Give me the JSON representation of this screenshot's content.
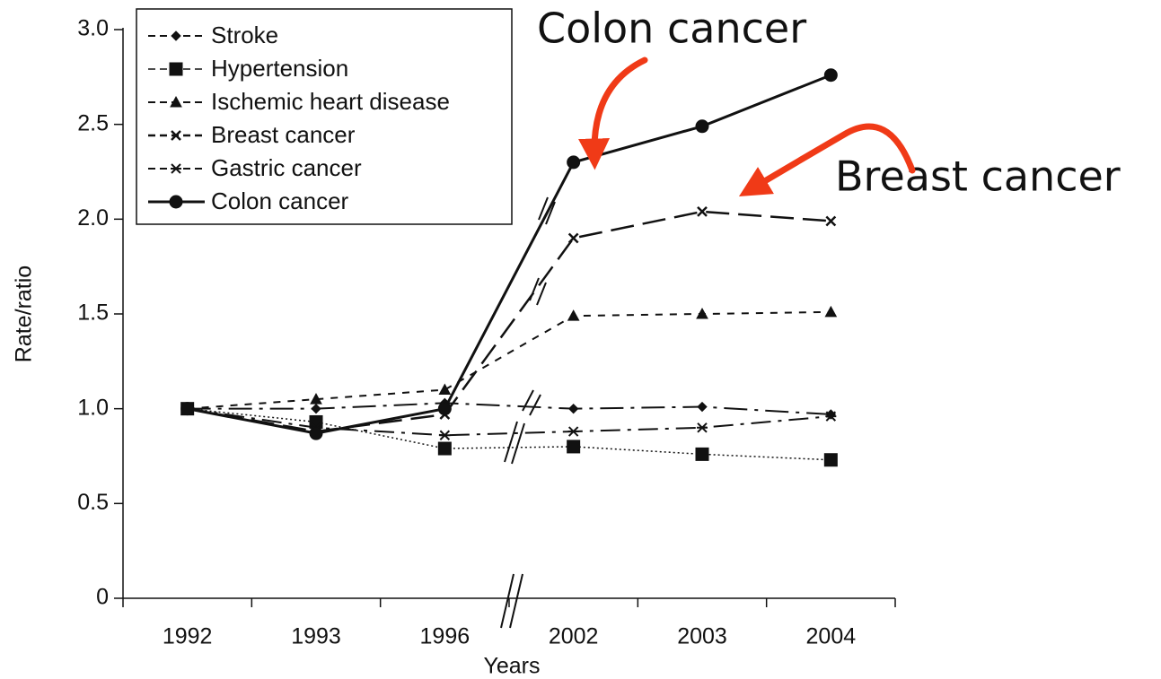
{
  "chart_data": {
    "type": "line",
    "xlabel": "Years",
    "ylabel": "Rate/ratio",
    "categories": [
      "1992",
      "1993",
      "1996",
      "2002",
      "2003",
      "2004"
    ],
    "series": [
      {
        "name": "Stroke",
        "color": "#111111",
        "values": [
          1.0,
          1.0,
          1.03,
          1.0,
          1.01,
          0.97
        ]
      },
      {
        "name": "Hypertension",
        "color": "#111111",
        "values": [
          1.0,
          0.93,
          0.79,
          0.8,
          0.76,
          0.73
        ]
      },
      {
        "name": "Ischemic heart disease",
        "color": "#111111",
        "values": [
          1.0,
          1.05,
          1.1,
          1.49,
          1.5,
          1.51
        ]
      },
      {
        "name": "Breast cancer",
        "color": "#111111",
        "values": [
          1.0,
          0.88,
          0.97,
          1.9,
          2.04,
          1.99
        ]
      },
      {
        "name": "Gastric cancer",
        "color": "#111111",
        "values": [
          1.0,
          0.9,
          0.86,
          0.88,
          0.9,
          0.96
        ]
      },
      {
        "name": "Colon cancer",
        "color": "#111111",
        "values": [
          1.0,
          0.87,
          1.0,
          2.3,
          2.49,
          2.76
        ]
      }
    ],
    "ylim": [
      0,
      3.0
    ],
    "yticks": [
      0,
      {
        "value": 0.5,
        "label": "0.5"
      },
      {
        "value": 1.0,
        "label": "1.0"
      },
      {
        "value": 1.5,
        "label": "1.5"
      },
      {
        "value": 2.0,
        "label": "2.0"
      },
      {
        "value": 2.5,
        "label": "2.5"
      },
      {
        "value": 3.0,
        "label": "3.0"
      }
    ],
    "legend": "upper left",
    "annotations": [
      "Colon cancer",
      "Breast cancer"
    ]
  }
}
